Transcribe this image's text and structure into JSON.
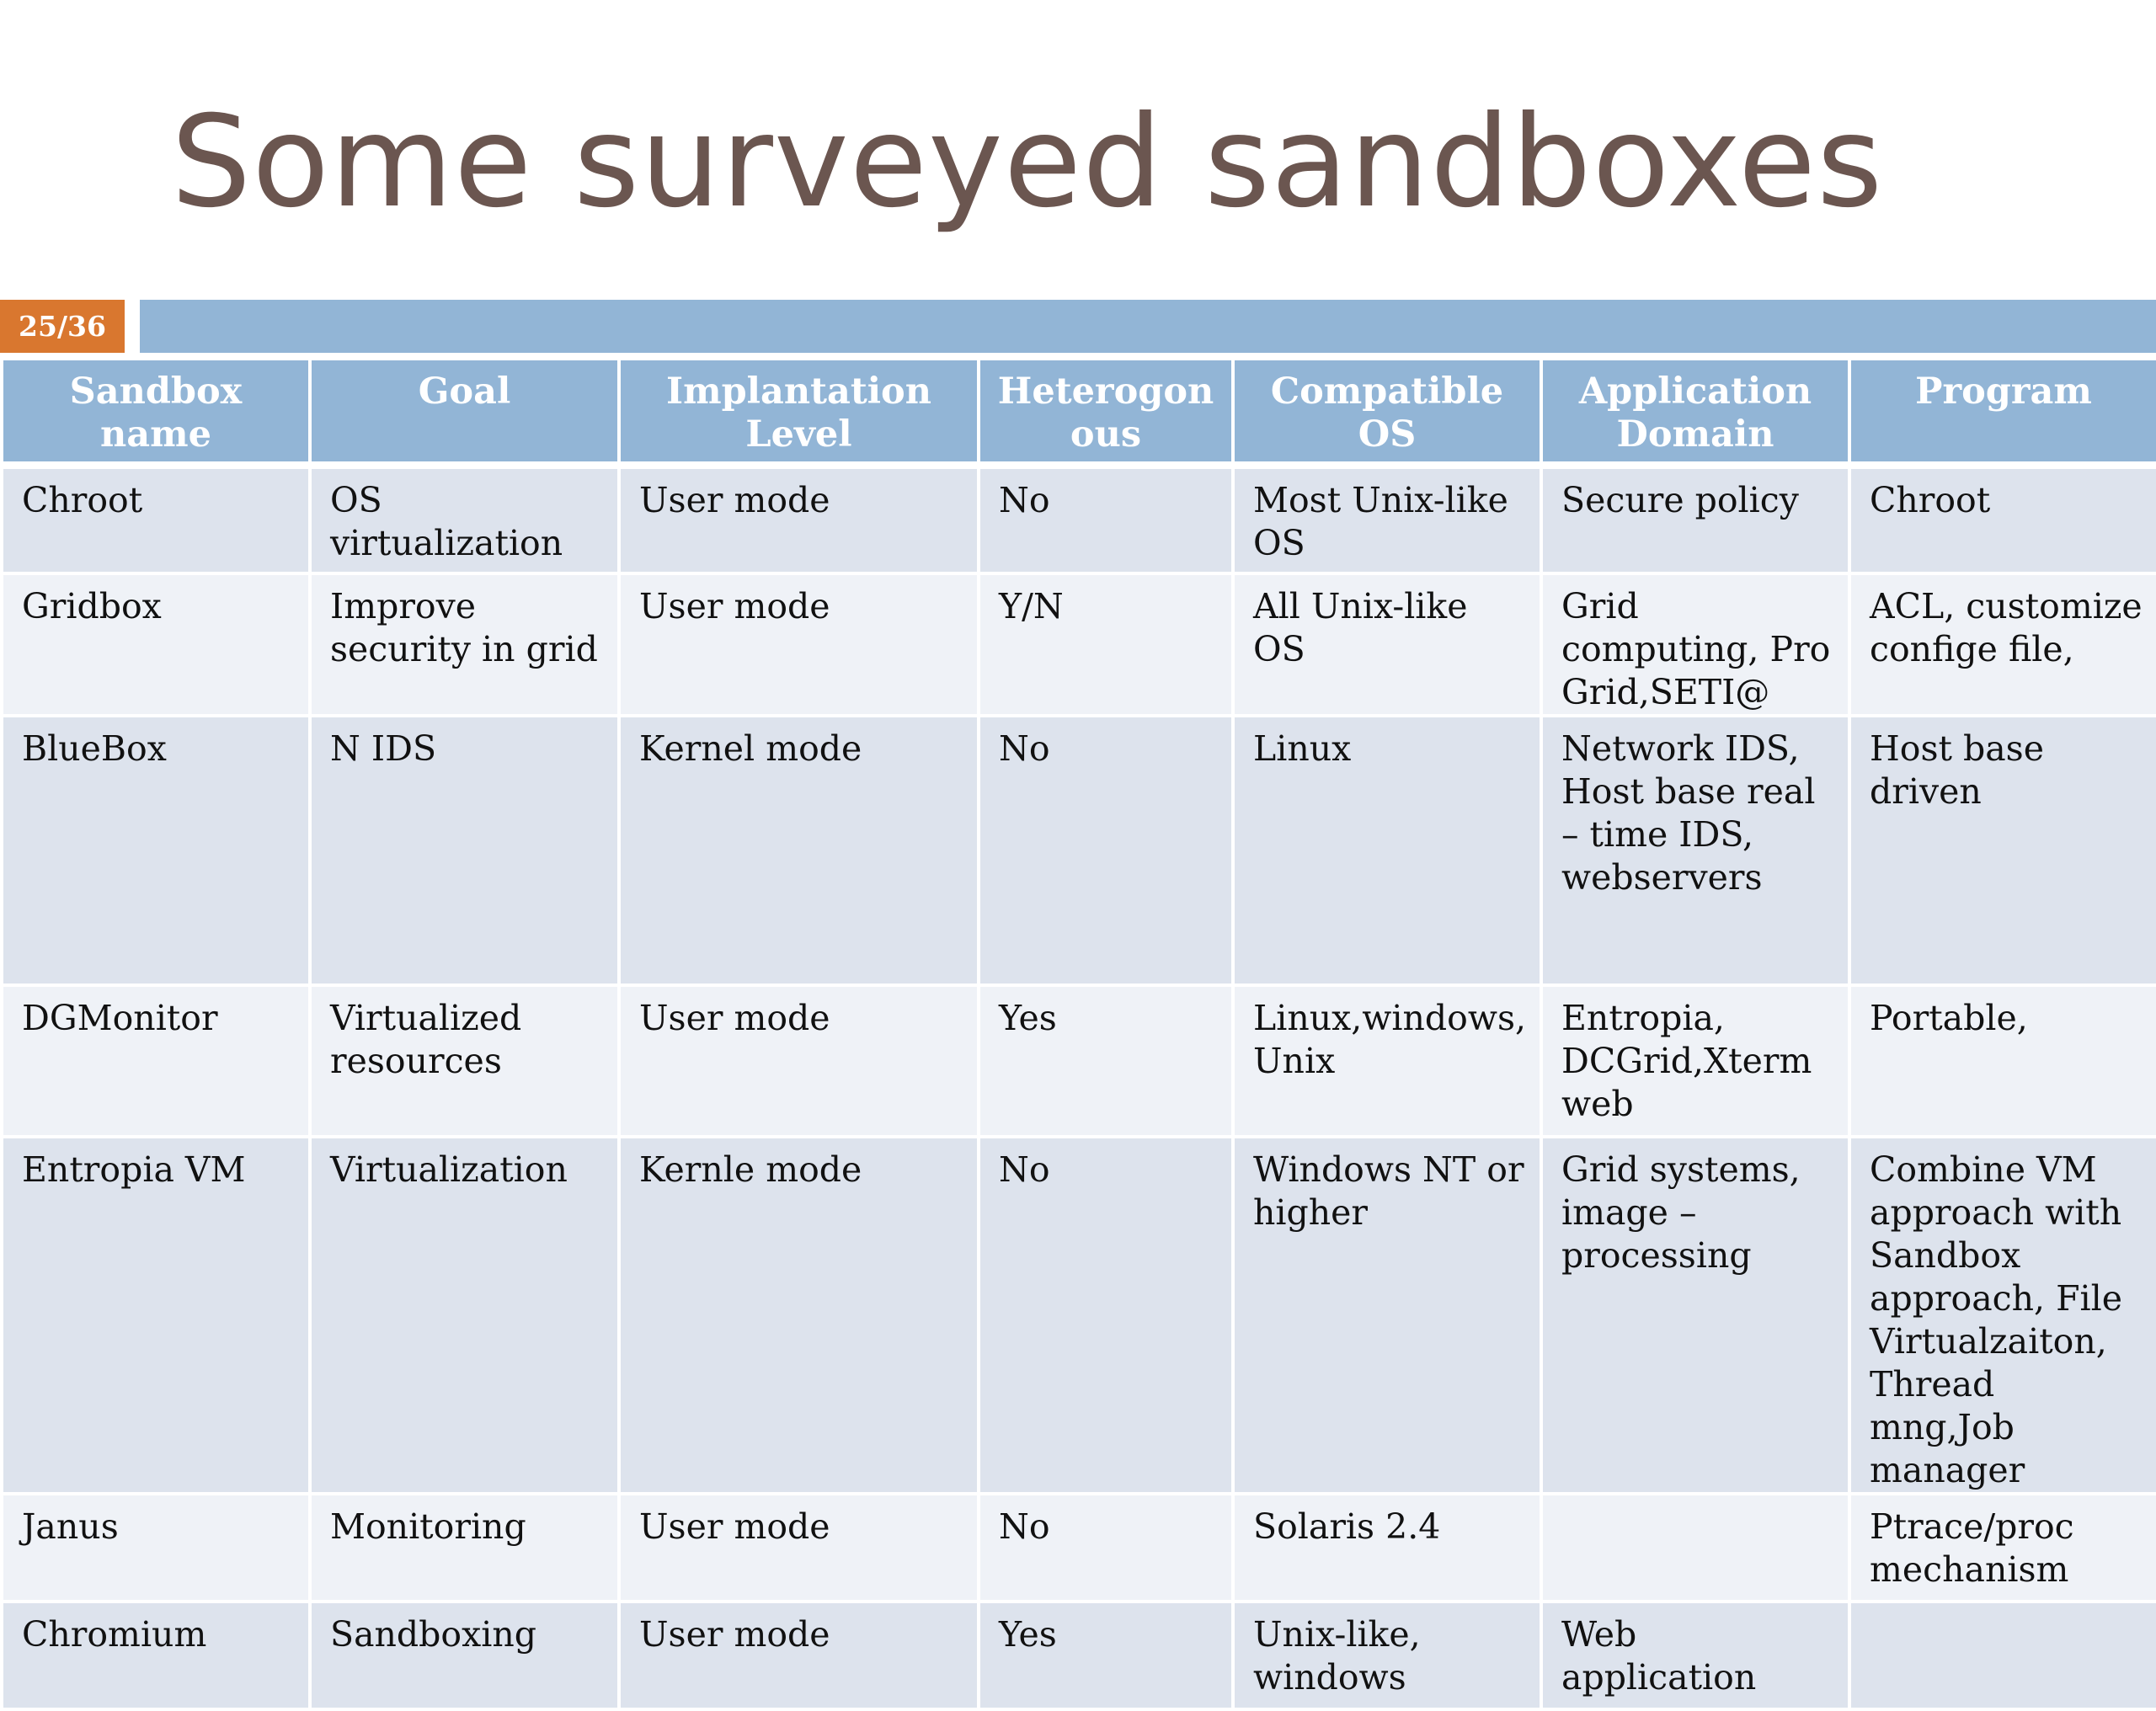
{
  "title": "Some surveyed sandboxes",
  "page_indicator": "25/36",
  "colors": {
    "title": "#6b5650",
    "header_bg": "#92b5d6",
    "badge_bg": "#d9772f",
    "row_odd": "#dde3ed",
    "row_even": "#eff2f7"
  },
  "table": {
    "headers": [
      "Sandbox name",
      "Goal",
      "Implantation Level",
      "Heterogon ous",
      "Compatible OS",
      "Application Domain",
      "Program"
    ],
    "rows": [
      [
        "Chroot",
        "OS virtualization",
        "User mode",
        "No",
        "Most Unix-like OS",
        "Secure policy",
        "Chroot"
      ],
      [
        "Gridbox",
        "Improve security in grid",
        "User mode",
        "Y/N",
        "All Unix-like OS",
        "Grid computing, Pro Grid,SETI@",
        "ACL, customize confige file,"
      ],
      [
        "BlueBox",
        "N IDS",
        "Kernel mode",
        "No",
        "Linux",
        "Network IDS, Host base  real – time  IDS, webservers",
        "Host base driven"
      ],
      [
        "DGMonitor",
        "Virtualized resources",
        "User mode",
        "Yes",
        "Linux,windows, Unix",
        "Entropia, DCGrid,Xterm web",
        "Portable,"
      ],
      [
        "Entropia VM",
        "Virtualization",
        "Kernle mode",
        "No",
        "Windows  NT or higher",
        "Grid systems, image – processing",
        "Combine VM approach with Sandbox approach, File Virtualzaiton, Thread mng,Job manager"
      ],
      [
        "Janus",
        "Monitoring",
        "User mode",
        "No",
        "Solaris 2.4",
        "",
        "Ptrace/proc mechanism"
      ],
      [
        "Chromium",
        "Sandboxing",
        "User mode",
        "Yes",
        "Unix-like, windows",
        "Web application",
        ""
      ]
    ]
  }
}
